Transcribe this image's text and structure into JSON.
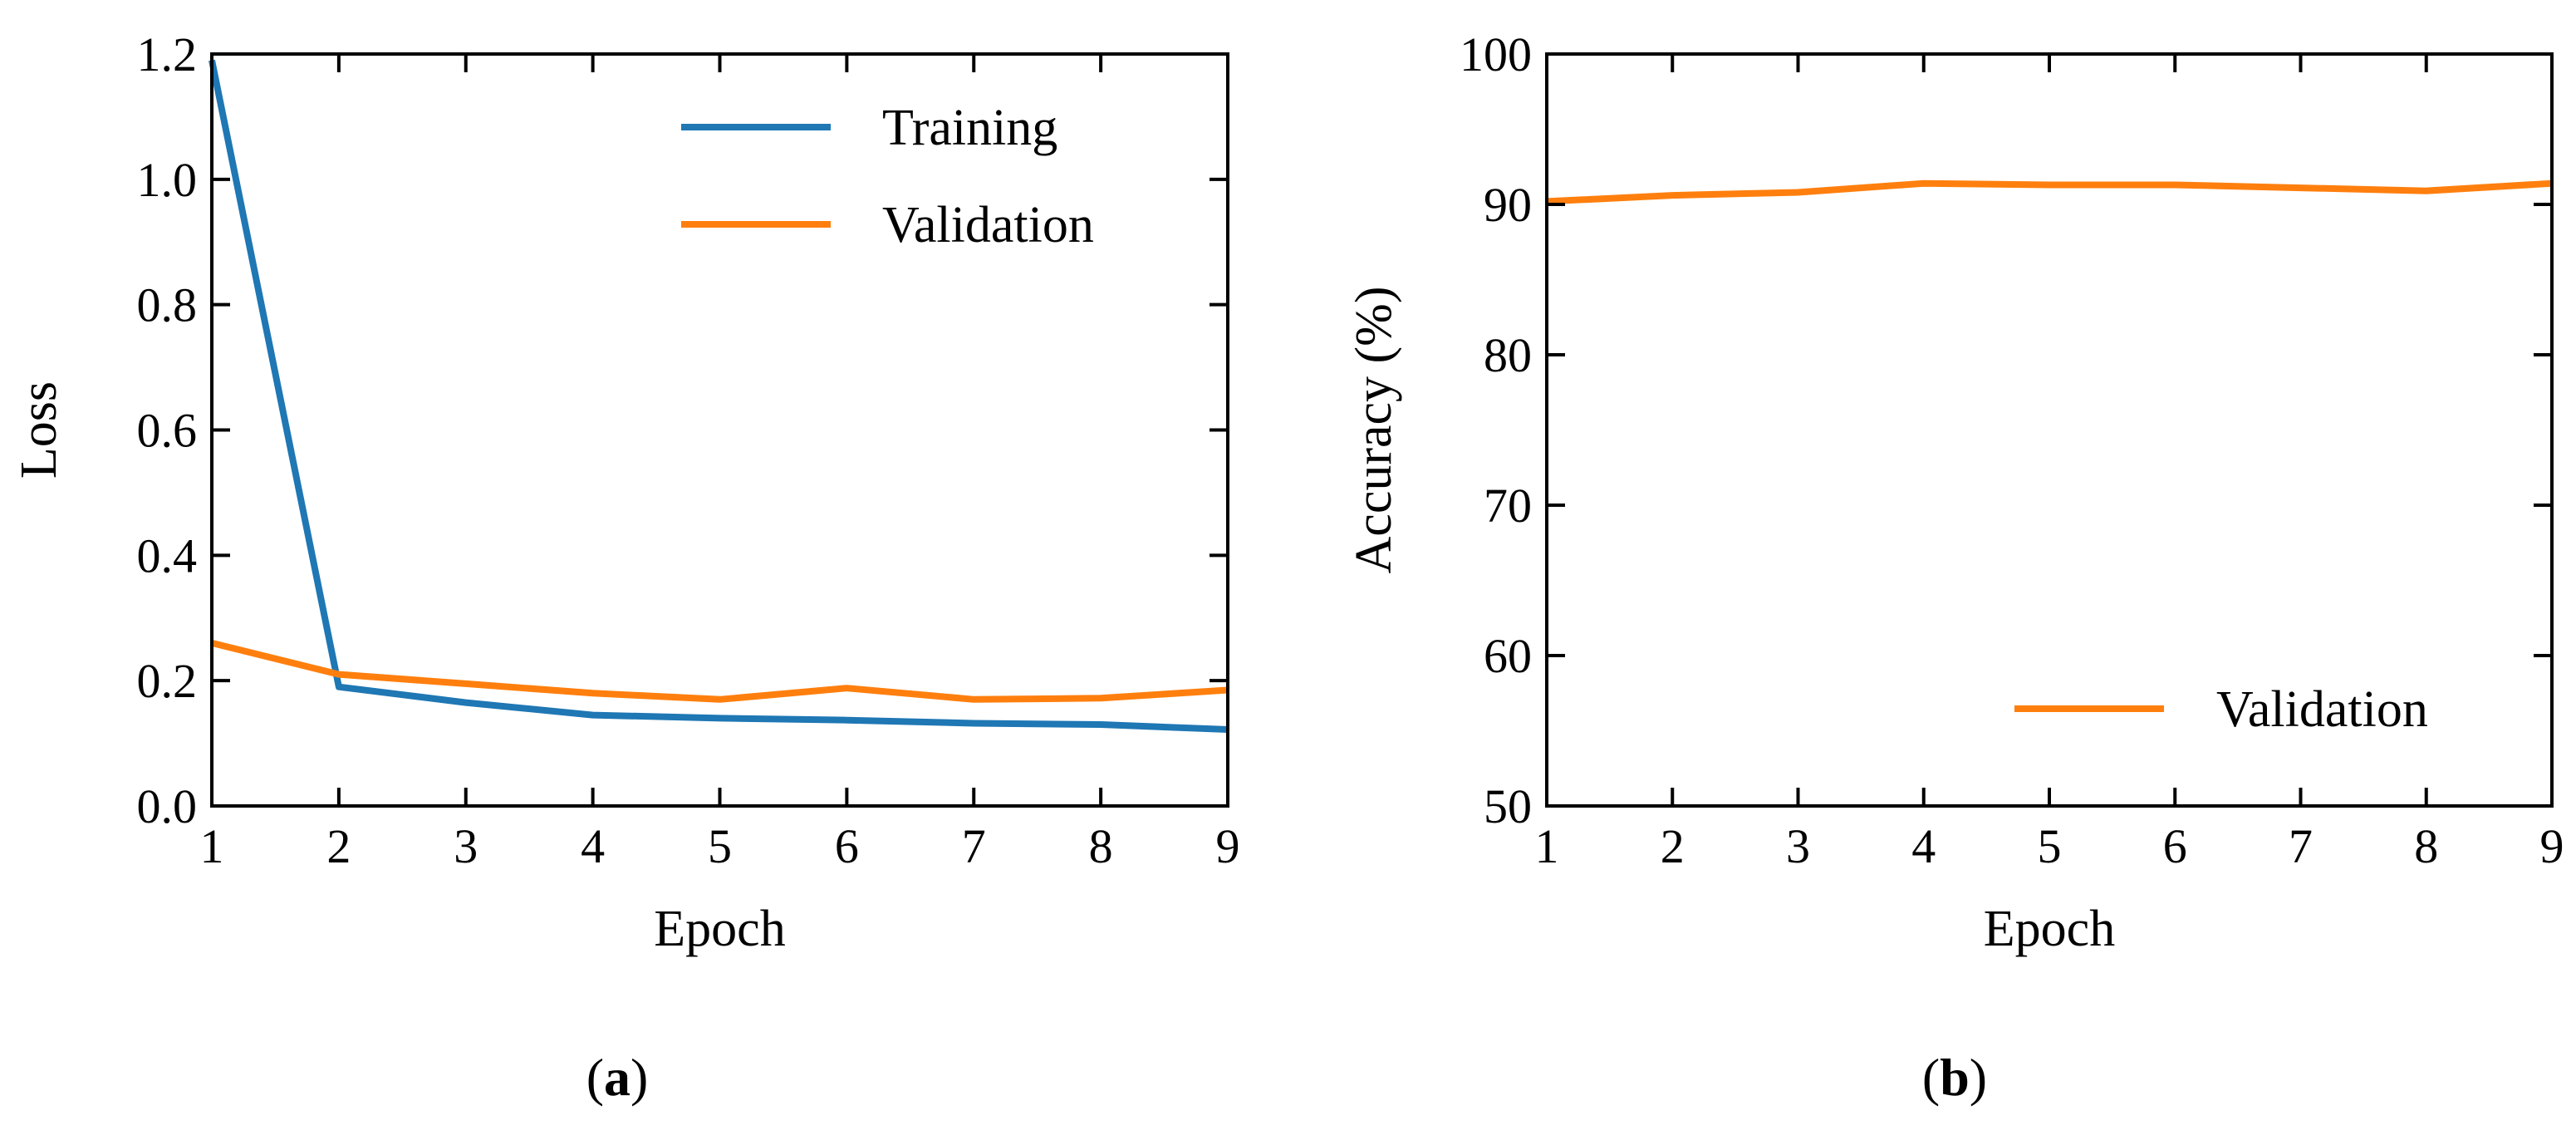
{
  "chart_data": [
    {
      "type": "line",
      "panel_label": "a",
      "xlabel": "Epoch",
      "ylabel": "Loss",
      "xlim": [
        1,
        9
      ],
      "ylim": [
        0,
        1.2
      ],
      "x": [
        1,
        2,
        3,
        4,
        5,
        6,
        7,
        8,
        9
      ],
      "xticks": [
        "1",
        "2",
        "3",
        "4",
        "5",
        "6",
        "7",
        "8",
        "9"
      ],
      "yticks": [
        "0.0",
        "0.2",
        "0.4",
        "0.6",
        "0.8",
        "1.0",
        "1.2"
      ],
      "grid": false,
      "legend_position": "top-right",
      "series": [
        {
          "name": "Training",
          "color": "#1f77b4",
          "values": [
            1.19,
            0.19,
            0.165,
            0.145,
            0.14,
            0.137,
            0.132,
            0.13,
            0.122
          ]
        },
        {
          "name": "Validation",
          "color": "#ff7f0e",
          "values": [
            0.26,
            0.21,
            0.195,
            0.18,
            0.17,
            0.188,
            0.17,
            0.172,
            0.185
          ]
        }
      ]
    },
    {
      "type": "line",
      "panel_label": "b",
      "xlabel": "Epoch",
      "ylabel": "Accuracy (%)",
      "xlim": [
        1,
        9
      ],
      "ylim": [
        50,
        100
      ],
      "x": [
        1,
        2,
        3,
        4,
        5,
        6,
        7,
        8,
        9
      ],
      "xticks": [
        "1",
        "2",
        "3",
        "4",
        "5",
        "6",
        "7",
        "8",
        "9"
      ],
      "yticks": [
        "50",
        "60",
        "70",
        "80",
        "90",
        "100"
      ],
      "grid": false,
      "legend_position": "bottom-right",
      "series": [
        {
          "name": "Validation",
          "color": "#ff7f0e",
          "values": [
            90.2,
            90.6,
            90.8,
            91.4,
            91.3,
            91.3,
            91.1,
            90.9,
            91.4
          ]
        }
      ]
    }
  ]
}
